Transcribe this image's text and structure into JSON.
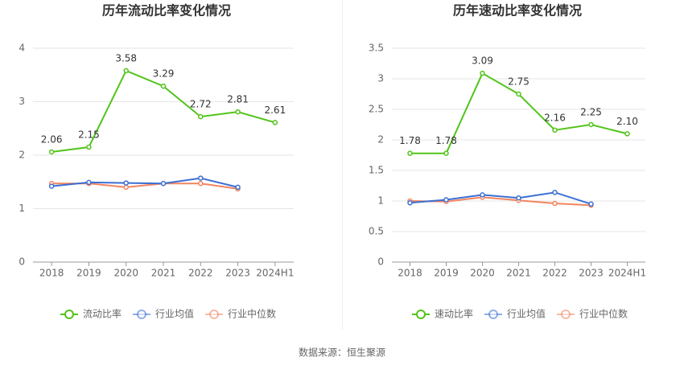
{
  "chart_data": [
    {
      "type": "line",
      "title": "历年流动比率变化情况",
      "categories": [
        "2018",
        "2019",
        "2020",
        "2021",
        "2022",
        "2023",
        "2024H1"
      ],
      "series": [
        {
          "name": "流动比率",
          "color": "#52c41a",
          "values": [
            2.06,
            2.15,
            3.58,
            3.29,
            2.72,
            2.81,
            2.61
          ]
        },
        {
          "name": "行业均值",
          "color": "#3b6fd4",
          "values": [
            1.42,
            1.49,
            1.48,
            1.47,
            1.57,
            1.4,
            null
          ]
        },
        {
          "name": "行业中位数",
          "color": "#f4845f",
          "values": [
            1.47,
            1.47,
            1.4,
            1.47,
            1.47,
            1.37,
            null
          ]
        }
      ],
      "ylim": [
        0,
        4
      ],
      "yticks": [
        0,
        1,
        2,
        3,
        4
      ],
      "grid": true,
      "legend": "bottom"
    },
    {
      "type": "line",
      "title": "历年速动比率变化情况",
      "categories": [
        "2018",
        "2019",
        "2020",
        "2021",
        "2022",
        "2023",
        "2024H1"
      ],
      "series": [
        {
          "name": "速动比率",
          "color": "#52c41a",
          "values": [
            1.78,
            1.78,
            3.09,
            2.75,
            2.16,
            2.25,
            2.1
          ],
          "value_labels": [
            "1.78",
            "1.78",
            "3.09",
            "2.75",
            "2.16",
            "2.25",
            "2.10"
          ]
        },
        {
          "name": "行业均值",
          "color": "#3b6fd4",
          "values": [
            0.97,
            1.02,
            1.1,
            1.05,
            1.14,
            0.95,
            null
          ]
        },
        {
          "name": "行业中位数",
          "color": "#f4845f",
          "values": [
            1.0,
            0.99,
            1.06,
            1.01,
            0.96,
            0.93,
            null
          ]
        }
      ],
      "ylim": [
        0,
        3.5
      ],
      "yticks": [
        0,
        0.5,
        1,
        1.5,
        2,
        2.5,
        3,
        3.5
      ],
      "grid": true,
      "legend": "bottom"
    }
  ],
  "source": "数据来源：恒生聚源"
}
